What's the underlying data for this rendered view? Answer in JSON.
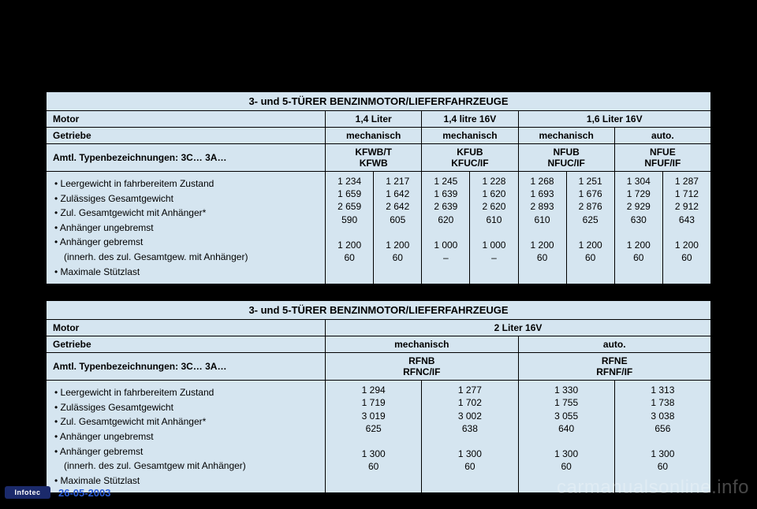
{
  "footer": {
    "brand": "Infotec",
    "date": "26-05-2003"
  },
  "watermark": "carmanualsonline.info",
  "tables": [
    {
      "title": "3- und 5-TÜRER BENZINMOTOR/LIEFERFAHRZEUGE",
      "motorLabel": "Motor",
      "getriebeLabel": "Getriebe",
      "typLabel": "Amtl. Typenbezeichnungen: 3C… 3A…",
      "labelColPct": 42,
      "motors": [
        {
          "label": "1,4 Liter",
          "span": 2
        },
        {
          "label": "1,4 litre 16V",
          "span": 2
        },
        {
          "label": "1,6 Liter 16V",
          "span": 4
        }
      ],
      "getriebe": [
        {
          "label": "mechanisch",
          "span": 2
        },
        {
          "label": "mechanisch",
          "span": 2
        },
        {
          "label": "mechanisch",
          "span": 2
        },
        {
          "label": "auto.",
          "span": 2
        }
      ],
      "codes": [
        {
          "label": "KFWB/T\nKFWB",
          "span": 2
        },
        {
          "label": "KFUB\nKFUC/IF",
          "span": 2
        },
        {
          "label": "NFUB\nNFUC/IF",
          "span": 2
        },
        {
          "label": "NFUE\nNFUF/IF",
          "span": 2
        }
      ],
      "rowLabels": [
        "• Leergewicht in fahrbereitem Zustand",
        "• Zulässiges Gesamtgewicht",
        "• Zul. Gesamtgewicht mit Anhänger*",
        "• Anhänger ungebremst",
        "• Anhänger gebremst",
        "  (innerh. des zul. Gesamtgew. mit Anhänger)",
        "• Maximale Stützlast"
      ],
      "columns": [
        [
          "1 234",
          "1 659",
          "2 659",
          "590",
          "",
          "1 200",
          "60"
        ],
        [
          "1 217",
          "1 642",
          "2 642",
          "605",
          "",
          "1 200",
          "60"
        ],
        [
          "1 245",
          "1 639",
          "2 639",
          "620",
          "",
          "1 000",
          "–"
        ],
        [
          "1 228",
          "1 620",
          "2 620",
          "610",
          "",
          "1 000",
          "–"
        ],
        [
          "1 268",
          "1 693",
          "2 893",
          "610",
          "",
          "1 200",
          "60"
        ],
        [
          "1 251",
          "1 676",
          "2 876",
          "625",
          "",
          "1 200",
          "60"
        ],
        [
          "1 304",
          "1 729",
          "2 929",
          "630",
          "",
          "1 200",
          "60"
        ],
        [
          "1 287",
          "1 712",
          "2 912",
          "643",
          "",
          "1 200",
          "60"
        ]
      ]
    },
    {
      "title": "3- und 5-TÜRER BENZINMOTOR/LIEFERFAHRZEUGE",
      "motorLabel": "Motor",
      "getriebeLabel": "Getriebe",
      "typLabel": "Amtl. Typenbezeichnungen: 3C… 3A…",
      "labelColPct": 42,
      "motors": [
        {
          "label": "2 Liter 16V",
          "span": 4
        }
      ],
      "getriebe": [
        {
          "label": "mechanisch",
          "span": 2
        },
        {
          "label": "auto.",
          "span": 2
        }
      ],
      "codes": [
        {
          "label": "RFNB\nRFNC/IF",
          "span": 2
        },
        {
          "label": "RFNE\nRFNF/IF",
          "span": 2
        }
      ],
      "rowLabels": [
        "• Leergewicht in fahrbereitem Zustand",
        "• Zulässiges Gesamtgewicht",
        "• Zul. Gesamtgewicht mit Anhänger*",
        "• Anhänger ungebremst",
        "• Anhänger gebremst",
        "  (innerh. des zul. Gesamtgew mit Anhänger)",
        "• Maximale Stützlast"
      ],
      "columns": [
        [
          "1 294",
          "1 719",
          "3 019",
          "625",
          "",
          "1 300",
          "60"
        ],
        [
          "1 277",
          "1 702",
          "3 002",
          "638",
          "",
          "1 300",
          "60"
        ],
        [
          "1 330",
          "1 755",
          "3 055",
          "640",
          "",
          "1 300",
          "60"
        ],
        [
          "1 313",
          "1 738",
          "3 038",
          "656",
          "",
          "1 300",
          "60"
        ]
      ]
    }
  ]
}
